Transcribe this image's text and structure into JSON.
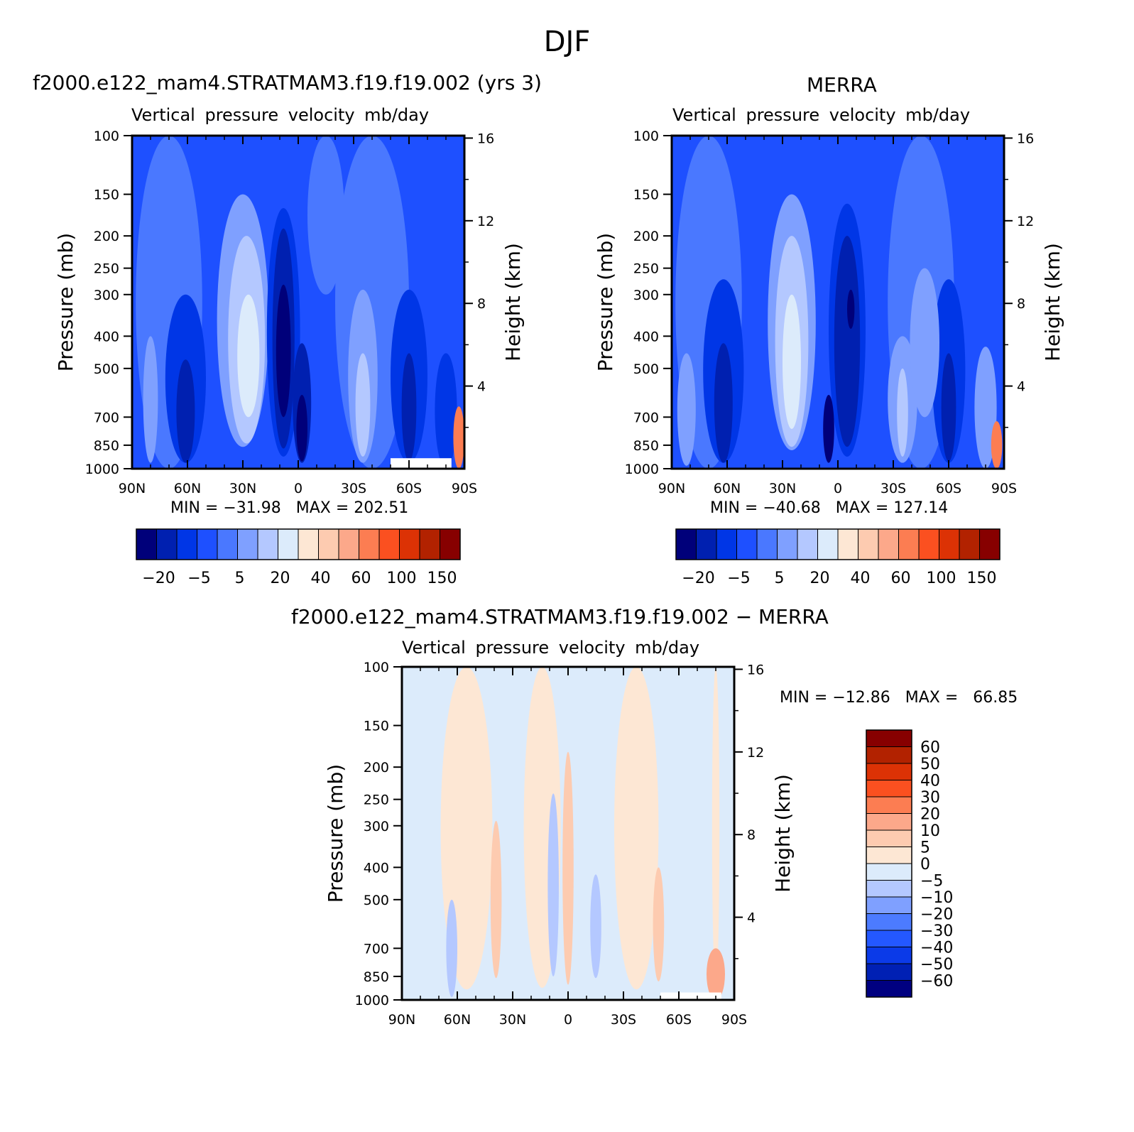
{
  "page_title": "DJF",
  "panels": [
    {
      "title": "f2000.e122_mam4.STRATMAM3.f19.f19.002 (yrs 3)",
      "subtitle": "Vertical pressure velocity   mb/day",
      "minmax": "MIN = −31.98   MAX = 202.51"
    },
    {
      "title": "MERRA",
      "subtitle": "Vertical pressure velocity   mb/day",
      "minmax": "MIN = −40.68   MAX = 127.14"
    },
    {
      "title": "f2000.e122_mam4.STRATMAM3.f19.f19.002 − MERRA",
      "subtitle": "Vertical pressure velocity   mb/day",
      "minmax": "MIN = −12.86   MAX =   66.85"
    }
  ],
  "colorbar_abs": {
    "colors": [
      "#00007a",
      "#0020b0",
      "#0036e6",
      "#1e50ff",
      "#4a78ff",
      "#7fa0ff",
      "#b4c8ff",
      "#dcebfb",
      "#fde7d4",
      "#fdcbb0",
      "#fca88a",
      "#fc7d52",
      "#fb5020",
      "#dc3205",
      "#b22200",
      "#870000"
    ],
    "labels": [
      "−20",
      "−5",
      "5",
      "20",
      "40",
      "60",
      "100",
      "150"
    ]
  },
  "colorbar_diff": {
    "colors": [
      "#000080",
      "#0020b4",
      "#0b3ae8",
      "#2458ff",
      "#4c7bff",
      "#7fa0ff",
      "#b4c8ff",
      "#dcebfb",
      "#fde7d4",
      "#fdcbb0",
      "#fca88a",
      "#fc7d52",
      "#fb5020",
      "#dc3205",
      "#b22200",
      "#870000"
    ],
    "labels": [
      "60",
      "50",
      "40",
      "30",
      "20",
      "10",
      "5",
      "0",
      "−5",
      "−10",
      "−20",
      "−30",
      "−40",
      "−50",
      "−60"
    ]
  },
  "chart_data": [
    {
      "type": "heatmap",
      "title": "f2000.e122_mam4.STRATMAM3.f19.f19.002 (yrs 3)",
      "subtitle": "Vertical pressure velocity   mb/day",
      "xlabel": "",
      "ylabel": "Pressure (mb)",
      "y2label": "Height (km)",
      "x_ticks": [
        "90N",
        "60N",
        "30N",
        "0",
        "30S",
        "60S",
        "90S"
      ],
      "y_ticks": [
        100,
        150,
        200,
        250,
        300,
        400,
        500,
        700,
        850,
        1000
      ],
      "y2_ticks": [
        16,
        12,
        8,
        4
      ],
      "y_scale": "log",
      "ylim": [
        1000,
        100
      ],
      "xlim": [
        90,
        -90
      ],
      "min": -31.98,
      "max": 202.51,
      "background_level": "−20 to −5",
      "features": [
        {
          "lat": 30,
          "p_top": 150,
          "p_bottom": 850,
          "level": "5 to 20",
          "note": "weak ascent minimum band near 30N, core 20–40"
        },
        {
          "lat": 8,
          "p_top": 170,
          "p_bottom": 900,
          "level": "−20 or less",
          "note": "strongest ascent near equator, core below −20"
        },
        {
          "lat": 61,
          "p_top": 300,
          "p_bottom": 950,
          "level": "−20 to −5",
          "note": "midlatitude ascent 60N"
        },
        {
          "lat": -60,
          "p_top": 300,
          "p_bottom": 950,
          "level": "−20 to −5",
          "note": "midlatitude ascent 60S"
        },
        {
          "lat": -35,
          "p_top": 300,
          "p_bottom": 950,
          "level": "5 to 20",
          "note": "subsidence 35S"
        },
        {
          "lat": 80,
          "p_top": 400,
          "p_bottom": 950,
          "level": "5 to 20",
          "note": "polar subsidence 80N"
        }
      ]
    },
    {
      "type": "heatmap",
      "title": "MERRA",
      "subtitle": "Vertical pressure velocity   mb/day",
      "xlabel": "",
      "ylabel": "Pressure (mb)",
      "y2label": "Height (km)",
      "x_ticks": [
        "90N",
        "60N",
        "30N",
        "0",
        "30S",
        "60S",
        "90S"
      ],
      "y_ticks": [
        100,
        150,
        200,
        250,
        300,
        400,
        500,
        700,
        850,
        1000
      ],
      "y2_ticks": [
        16,
        12,
        8,
        4
      ],
      "y_scale": "log",
      "ylim": [
        1000,
        100
      ],
      "xlim": [
        90,
        -90
      ],
      "min": -40.68,
      "max": 127.14,
      "background_level": "−20 to −5",
      "features": [
        {
          "lat": 25,
          "p_top": 150,
          "p_bottom": 880,
          "level": "5 to 20",
          "note": "subsidence band near 25N, core 20–40"
        },
        {
          "lat": -5,
          "p_top": 170,
          "p_bottom": 900,
          "level": "−20 or less",
          "note": "equatorial ascent, core below −20"
        },
        {
          "lat": 62,
          "p_top": 280,
          "p_bottom": 950,
          "level": "−20 to −5",
          "note": "midlatitude ascent 60N"
        },
        {
          "lat": -60,
          "p_top": 270,
          "p_bottom": 950,
          "level": "−20 to −5",
          "note": "midlatitude ascent 60S"
        },
        {
          "lat": -35,
          "p_top": 450,
          "p_bottom": 950,
          "level": "5 to 20",
          "note": "subsidence 35S"
        }
      ]
    },
    {
      "type": "heatmap",
      "title": "f2000.e122_mam4.STRATMAM3.f19.f19.002 − MERRA",
      "subtitle": "Vertical pressure velocity   mb/day",
      "xlabel": "",
      "ylabel": "Pressure (mb)",
      "y2label": "Height (km)",
      "x_ticks": [
        "90N",
        "60N",
        "30N",
        "0",
        "30S",
        "60S",
        "90S"
      ],
      "y_ticks": [
        100,
        150,
        200,
        250,
        300,
        400,
        500,
        700,
        850,
        1000
      ],
      "y2_ticks": [
        16,
        12,
        8,
        4
      ],
      "y_scale": "log",
      "ylim": [
        1000,
        100
      ],
      "xlim": [
        90,
        -90
      ],
      "min": -12.86,
      "max": 66.85,
      "background_level": "−5 to 0 and 0 to 5",
      "features": [
        {
          "lat": 39,
          "p_top": 290,
          "p_bottom": 860,
          "level": "5 to 10",
          "note": "positive difference 40N"
        },
        {
          "lat": 0,
          "p_top": 180,
          "p_bottom": 900,
          "level": "5 to 10",
          "note": "positive difference near equator"
        },
        {
          "lat": -49,
          "p_top": 400,
          "p_bottom": 880,
          "level": "5 to 10",
          "note": "positive difference 50S"
        },
        {
          "lat": 8,
          "p_top": 240,
          "p_bottom": 850,
          "level": "−5 to −10",
          "note": "negative difference near 8N"
        }
      ]
    }
  ]
}
